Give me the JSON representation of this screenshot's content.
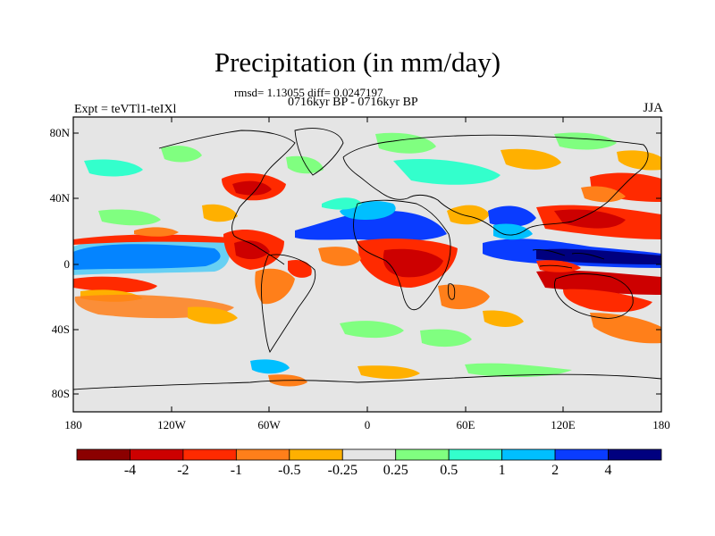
{
  "figure": {
    "title": "Precipitation (in mm/day)",
    "stats_line": "rmsd= 1.13055 diff= 0.0247197",
    "period_line": "0716kyr BP - 0716kyr BP",
    "experiment_label": "Expt = teVTl1-teIXl",
    "season_label": "JJA"
  },
  "map_axes": {
    "lat_ticks": [
      "80N",
      "40N",
      "0",
      "40S",
      "80S"
    ],
    "lon_ticks": [
      "180",
      "120W",
      "60W",
      "0",
      "60E",
      "120E",
      "180"
    ]
  },
  "colorbar": {
    "labels": [
      "-4",
      "-2",
      "-1",
      "-0.5",
      "-0.25",
      "0.25",
      "0.5",
      "1",
      "2",
      "4"
    ],
    "colors": [
      "#8b0000",
      "#cd0000",
      "#ff2a00",
      "#ff7f1a",
      "#ffb000",
      "#e5e5e5",
      "#80ff80",
      "#33ffcc",
      "#00bfff",
      "#0a3cff",
      "#00007f"
    ]
  },
  "palette": {
    "ocean_background": "#e5e5e5",
    "coastline": "#000000"
  }
}
